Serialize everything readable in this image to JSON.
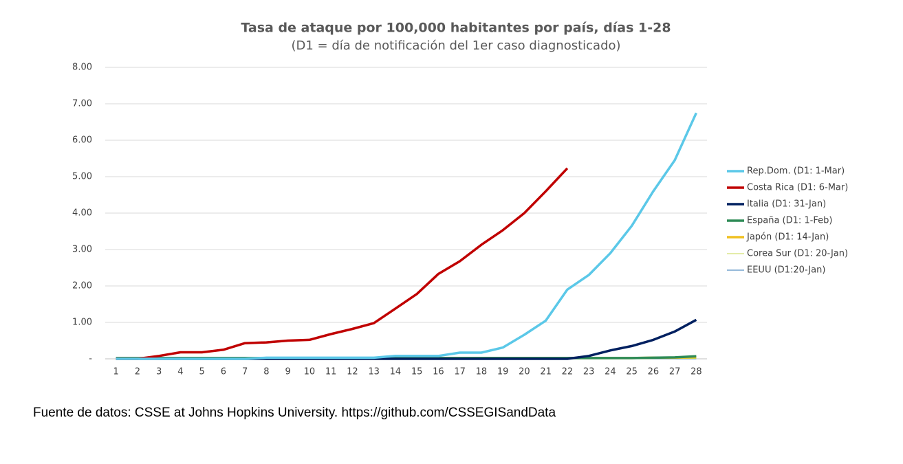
{
  "chart_data": {
    "type": "line",
    "title": "Tasa de ataque por 100,000 habitantes por país, días 1-28",
    "subtitle": "(D1 = día de notificación del 1er caso diagnosticado)",
    "source": "Fuente de datos: CSSE at Johns Hopkins University. https://github.com/CSSEGISandData",
    "categories": [
      "1",
      "2",
      "3",
      "4",
      "5",
      "6",
      "7",
      "8",
      "9",
      "10",
      "11",
      "12",
      "13",
      "14",
      "15",
      "16",
      "17",
      "18",
      "19",
      "20",
      "21",
      "22",
      "23",
      "24",
      "25",
      "26",
      "27",
      "28"
    ],
    "ylim": [
      0,
      8
    ],
    "yticks": [
      {
        "value": 0,
        "label": "-"
      },
      {
        "value": 1,
        "label": "1.00"
      },
      {
        "value": 2,
        "label": "2.00"
      },
      {
        "value": 3,
        "label": "3.00"
      },
      {
        "value": 4,
        "label": "4.00"
      },
      {
        "value": 5,
        "label": "5.00"
      },
      {
        "value": 6,
        "label": "6.00"
      },
      {
        "value": 7,
        "label": "7.00"
      },
      {
        "value": 8,
        "label": "8.00"
      }
    ],
    "grid": true,
    "legend": "right",
    "series": [
      {
        "name": "Rep.Dom. (D1: 1-Mar)",
        "color": "#5bc8e8",
        "width": 3.5,
        "values": [
          0,
          0,
          0,
          0,
          0,
          0,
          0,
          0.03,
          0.03,
          0.03,
          0.03,
          0.03,
          0.03,
          0.08,
          0.08,
          0.08,
          0.17,
          0.17,
          0.31,
          0.66,
          1.05,
          1.9,
          2.3,
          2.9,
          3.65,
          4.6,
          5.45,
          6.75
        ]
      },
      {
        "name": "Costa Rica (D1: 6-Mar)",
        "color": "#c00000",
        "width": 3.5,
        "values": [
          0,
          0,
          0.08,
          0.18,
          0.18,
          0.25,
          0.43,
          0.45,
          0.5,
          0.52,
          0.68,
          0.82,
          0.98,
          1.38,
          1.78,
          2.33,
          2.68,
          3.13,
          3.53,
          4.0,
          4.6,
          5.23,
          null,
          null,
          null,
          null,
          null,
          null
        ]
      },
      {
        "name": "Italia (D1: 31-Jan)",
        "color": "#002060",
        "width": 3.5,
        "values": [
          0,
          0,
          0,
          0,
          0,
          0,
          0,
          0,
          0,
          0,
          0,
          0,
          0,
          0,
          0,
          0,
          0,
          0,
          0,
          0,
          0,
          0,
          0.08,
          0.23,
          0.35,
          0.52,
          0.75,
          1.07
        ]
      },
      {
        "name": "España (D1: 1-Feb)",
        "color": "#2e8b57",
        "width": 3.5,
        "values": [
          0.02,
          0.02,
          0.02,
          0.02,
          0.02,
          0.02,
          0.02,
          0.02,
          0.02,
          0.02,
          0.02,
          0.02,
          0.02,
          0.02,
          0.02,
          0.02,
          0.02,
          0.02,
          0.02,
          0.02,
          0.02,
          0.02,
          0.02,
          0.02,
          0.02,
          0.03,
          0.04,
          0.07
        ]
      },
      {
        "name": "Japón (D1: 14-Jan)",
        "color": "#f0c020",
        "width": 3.5,
        "values": [
          0.02,
          0.02,
          0.02,
          0.02,
          0.02,
          0.02,
          0.02,
          0.02,
          0.02,
          0.02,
          0.02,
          0.02,
          0.02,
          0.02,
          0.02,
          0.02,
          0.02,
          0.02,
          0.02,
          0.02,
          0.02,
          0.02,
          0.02,
          0.02,
          0.02,
          0.03,
          0.03,
          0.05
        ]
      },
      {
        "name": "Corea Sur (D1: 20-Jan)",
        "color": "#c8d850",
        "width": 1,
        "values": [
          0.01,
          0.01,
          0.01,
          0.01,
          0.01,
          0.01,
          0.01,
          0.01,
          0.01,
          0.01,
          0.01,
          0.01,
          0.01,
          0.01,
          0.01,
          0.01,
          0.01,
          0.01,
          0.01,
          0.01,
          0.01,
          0.01,
          0.01,
          0.01,
          0.01,
          0.01,
          0.01,
          0.01
        ]
      },
      {
        "name": "EEUU (D1:20-Jan)",
        "color": "#2e75b6",
        "width": 1,
        "values": [
          0,
          0,
          0,
          0,
          0,
          0,
          0,
          0,
          0,
          0,
          0,
          0,
          0,
          0,
          0,
          0,
          0,
          0,
          0,
          0,
          0,
          0,
          0,
          0,
          0,
          0,
          0,
          0
        ]
      }
    ]
  }
}
